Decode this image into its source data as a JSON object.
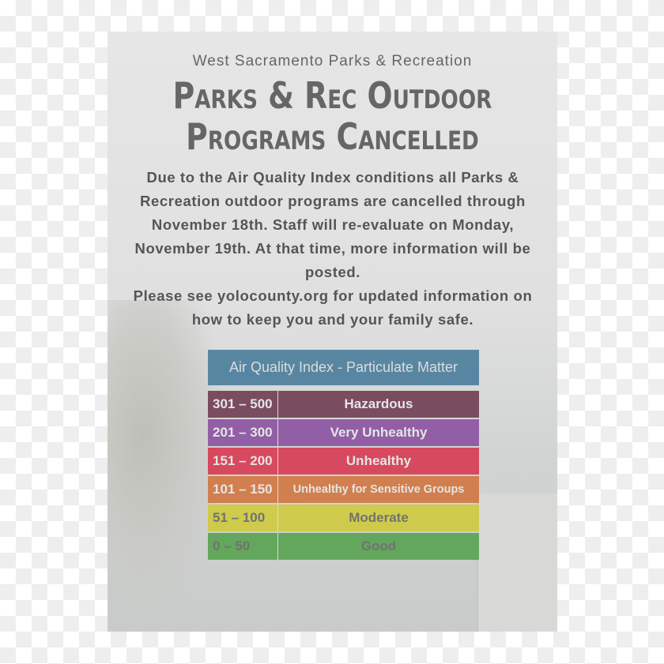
{
  "org": "West Sacramento Parks & Recreation",
  "title": [
    "Parks & Rec Outdoor",
    "Programs Cancelled"
  ],
  "body": "Due to the Air Quality Index conditions all Parks & Recreation outdoor programs are cancelled through November 18th. Staff will re-evaluate on Monday, November 19th. At that time, more information will be posted.",
  "body2": "Please see yolocounty.org for updated information on how to keep you and your family safe.",
  "aqi": {
    "header": "Air Quality Index - Particulate Matter",
    "header_color": "#4b7e9c",
    "rows": [
      {
        "range": "301 – 500",
        "label": "Hazardous",
        "color": "#6e3a4e"
      },
      {
        "range": "201 – 300",
        "label": "Very Unhealthy",
        "color": "#8a4fa0"
      },
      {
        "range": "151 – 200",
        "label": "Unhealthy",
        "color": "#d8364f"
      },
      {
        "range": "101 – 150",
        "label": "Unhealthy for Sensitive Groups",
        "color": "#d2743c"
      },
      {
        "range": "51 – 100",
        "label": "Moderate",
        "color": "#cfcb3a"
      },
      {
        "range": "0 – 50",
        "label": "Good",
        "color": "#55a24e"
      }
    ]
  }
}
